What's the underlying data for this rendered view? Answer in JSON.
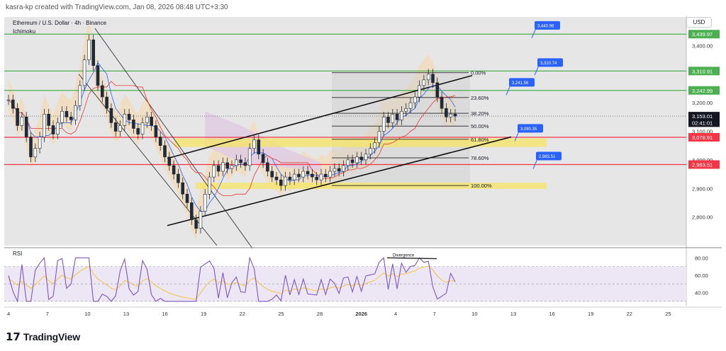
{
  "header": {
    "attribution": "kasra-kp created with TradingView.com, Jan 08, 2026 08:48 UTC+3:30"
  },
  "legend": {
    "symbol": "Ethereum / U.S. Dollar · 4h · Binance",
    "indicator": "Ichimoku"
  },
  "currency": "USD",
  "rsi_label": "RSI",
  "divergence_label": "Divergence",
  "footer": {
    "brand": "TradingView",
    "logo_glyph": "17"
  },
  "colors": {
    "green_level": "#4caf50",
    "red_level": "#f23645",
    "callout": "#2962ff",
    "fib_zone": "#f5e663",
    "kumo": "#f7d7a8",
    "kumo_purple": "#e0c9e3",
    "background": "#e6e6e6",
    "rsi_line": "#7e57c2",
    "rsi_ma": "#f5c542",
    "candle_dark": "#1e2a3a"
  },
  "chart_data": {
    "type": "candlestick",
    "y_axis": {
      "min": 2700,
      "max": 3500,
      "ticks": [
        "3,400.00",
        "3,200.00",
        "3,100.00",
        "3,000.00",
        "2,900.00",
        "2,800.00"
      ],
      "tick_values": [
        3400,
        3200,
        3100,
        3000,
        2900,
        2800
      ]
    },
    "x_axis": {
      "ticks": [
        "4",
        "7",
        "10",
        "13",
        "16",
        "19",
        "22",
        "25",
        "28",
        "2026",
        "4",
        "7",
        "10",
        "13",
        "16",
        "19",
        "22",
        "25"
      ]
    },
    "price_labels": [
      {
        "text": "3,439.97",
        "value": 3439.97,
        "kind": "green"
      },
      {
        "text": "3,310.91",
        "value": 3310.91,
        "kind": "green"
      },
      {
        "text": "3,242.99",
        "value": 3242.99,
        "kind": "green"
      },
      {
        "text": "3,153.01",
        "value": 3153.01,
        "kind": "current"
      },
      {
        "text": "02:41:01",
        "value": 3130,
        "kind": "timer"
      },
      {
        "text": "3,078.91",
        "value": 3078.91,
        "kind": "red"
      },
      {
        "text": "2,983.51",
        "value": 2983.51,
        "kind": "red"
      }
    ],
    "callouts": [
      {
        "text": "3,440.98",
        "value": 3440.98
      },
      {
        "text": "3,310.74",
        "value": 3310.74
      },
      {
        "text": "3,241.56",
        "value": 3241.56
      },
      {
        "text": "3,080.35",
        "value": 3080.35
      },
      {
        "text": "2,983.51",
        "value": 2983.51
      }
    ],
    "fib_levels": [
      {
        "label": "0.00%",
        "value": 3305
      },
      {
        "label": "23.60%",
        "value": 3218
      },
      {
        "label": "38.20%",
        "value": 3163
      },
      {
        "label": "50.00%",
        "value": 3118
      },
      {
        "label": "61.80%",
        "value": 3072
      },
      {
        "label": "78.60%",
        "value": 3007
      },
      {
        "label": "100.00%",
        "value": 2910
      }
    ],
    "rsi": {
      "min": 25,
      "max": 90,
      "ticks": [
        "80.00",
        "60.00",
        "40.00"
      ],
      "tick_values": [
        80,
        60,
        40
      ],
      "upper_band": 70,
      "lower_band": 30
    },
    "price_series": [
      3210,
      3180,
      3120,
      3150,
      3080,
      3010,
      3040,
      3080,
      3160,
      3120,
      3090,
      3130,
      3170,
      3150,
      3140,
      3190,
      3260,
      3350,
      3420,
      3330,
      3260,
      3220,
      3180,
      3130,
      3100,
      3120,
      3160,
      3140,
      3110,
      3090,
      3130,
      3150,
      3120,
      3080,
      3050,
      3010,
      2980,
      2950,
      2920,
      2880,
      2850,
      2790,
      2760,
      2820,
      2880,
      2940,
      2980,
      2960,
      2990,
      2970,
      2980,
      3000,
      2990,
      2980,
      3040,
      3070,
      3020,
      2990,
      2960,
      2940,
      2930,
      2910,
      2940,
      2930,
      2950,
      2940,
      2960,
      2950,
      2940,
      2930,
      2950,
      2940,
      2960,
      2970,
      2960,
      2980,
      3000,
      2990,
      3010,
      3000,
      3020,
      3040,
      3060,
      3100,
      3150,
      3130,
      3160,
      3140,
      3170,
      3180,
      3200,
      3220,
      3260,
      3280,
      3300,
      3270,
      3220,
      3180,
      3150,
      3160,
      3153
    ]
  }
}
